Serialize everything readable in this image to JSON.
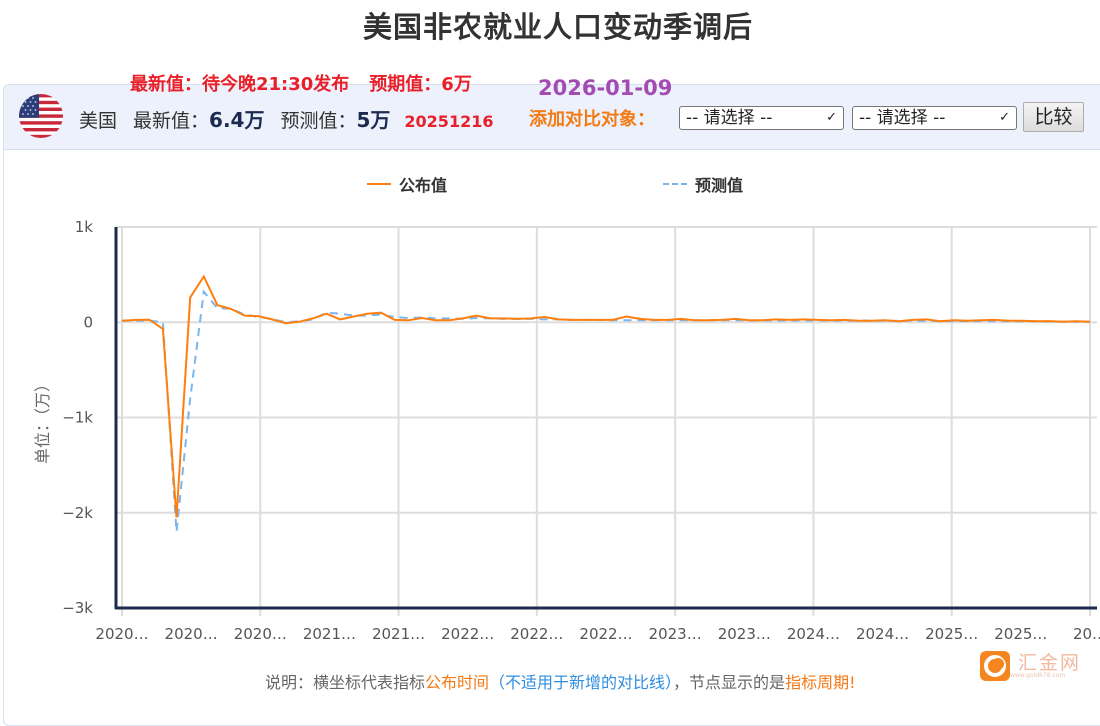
{
  "page": {
    "title": "美国非农就业人口变动季调后"
  },
  "announcement": {
    "latest_label": "最新值：待今晚21:30发布",
    "expected_label": "预期值：6万",
    "release_date": "2026-01-09"
  },
  "info": {
    "country": "美国",
    "latest_label": "最新值：",
    "latest_value": "6.4万",
    "forecast_label": "预测值：",
    "forecast_value": "5万",
    "period": "20251216",
    "compare_label": "添加对比对象：",
    "select1": "-- 请选择 --",
    "select2": "-- 请选择 --",
    "compare_button": "比较"
  },
  "colors": {
    "published": "#ff7f0e",
    "forecast": "#7cb5ec",
    "axis": "#1b2a4e",
    "grid": "#dddddd"
  },
  "legend": {
    "published": "公布值",
    "forecast": "预测值"
  },
  "footer": {
    "prefix": "说明：横坐标代表指标",
    "publish_time": "公布时间",
    "paren": "（不适用于新增的对比线）",
    "middle": "，节点显示的是",
    "period": "指标周期",
    "suffix": "!",
    "logo_name": "汇金网",
    "logo_url": "www.gold678.com"
  },
  "chart_data": {
    "type": "line",
    "title": "美国非农就业人口变动季调后",
    "xlabel": "",
    "ylabel": "单位：（万）",
    "ylim": [
      -3000,
      1000
    ],
    "yticks": [
      "1k",
      "0",
      "−1k",
      "−2k",
      "−3k"
    ],
    "ytick_values": [
      1000,
      0,
      -1000,
      -2000,
      -3000
    ],
    "xtick_labels": [
      "2020…",
      "2020…",
      "2020…",
      "2021…",
      "2021…",
      "2022…",
      "2022…",
      "2022…",
      "2023…",
      "2023…",
      "2024…",
      "2024…",
      "2025…",
      "2025…",
      "20…"
    ],
    "grid": true,
    "legend_position": "top",
    "series": [
      {
        "name": "公布值",
        "style": "solid",
        "values": [
          15,
          25,
          27,
          -70,
          -2050,
          260,
          480,
          180,
          140,
          70,
          65,
          30,
          -10,
          5,
          40,
          90,
          30,
          60,
          90,
          100,
          25,
          20,
          45,
          20,
          20,
          40,
          70,
          40,
          40,
          35,
          40,
          55,
          30,
          25,
          25,
          25,
          25,
          60,
          35,
          25,
          25,
          35,
          20,
          20,
          25,
          35,
          20,
          20,
          30,
          25,
          30,
          25,
          20,
          25,
          15,
          15,
          20,
          10,
          25,
          30,
          10,
          20,
          15,
          20,
          25,
          15,
          15,
          10,
          12,
          5,
          10,
          6
        ]
      },
      {
        "name": "预测值",
        "style": "dashed",
        "values": [
          16,
          17,
          17,
          0,
          -2200,
          -800,
          320,
          150,
          140,
          80,
          55,
          35,
          0,
          10,
          30,
          100,
          90,
          70,
          70,
          80,
          55,
          45,
          50,
          40,
          40,
          35,
          45,
          40,
          35,
          35,
          35,
          30,
          30,
          25,
          25,
          25,
          20,
          20,
          20,
          20,
          20,
          20,
          20,
          20,
          20,
          20,
          18,
          18,
          18,
          18,
          18,
          18,
          17,
          17,
          17,
          17,
          15,
          14,
          15,
          15,
          12,
          12,
          12,
          12,
          12,
          12,
          10,
          10,
          8,
          8,
          6,
          5
        ]
      }
    ]
  }
}
